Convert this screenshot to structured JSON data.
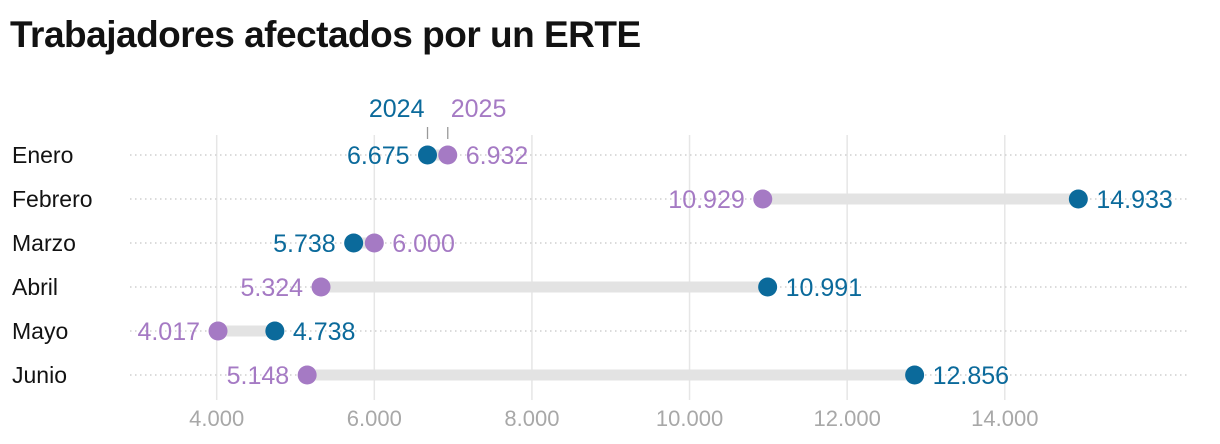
{
  "chart_data": {
    "type": "dumbbell",
    "title": "Trabajadores afectados por un ERTE",
    "categories": [
      "Enero",
      "Febrero",
      "Marzo",
      "Abril",
      "Mayo",
      "Junio"
    ],
    "series": [
      {
        "name": "2024",
        "color": "#0b6a9b",
        "values": [
          6675,
          14933,
          5738,
          10991,
          4738,
          12856
        ],
        "labels": [
          "6.675",
          "14.933",
          "5.738",
          "10.991",
          "4.738",
          "12.856"
        ]
      },
      {
        "name": "2025",
        "color": "#a57ac4",
        "values": [
          6932,
          10929,
          6000,
          5324,
          4017,
          5148
        ],
        "labels": [
          "6.932",
          "10.929",
          "6.000",
          "5.324",
          "4.017",
          "5.148"
        ]
      }
    ],
    "xticks": [
      4000,
      6000,
      8000,
      10000,
      12000,
      14000
    ],
    "xtick_labels": [
      "4.000",
      "6.000",
      "8.000",
      "10.000",
      "12.000",
      "14.000"
    ],
    "xlim": [
      2900,
      16350
    ],
    "grid": true,
    "legend_placement": "top, annotating first row"
  }
}
